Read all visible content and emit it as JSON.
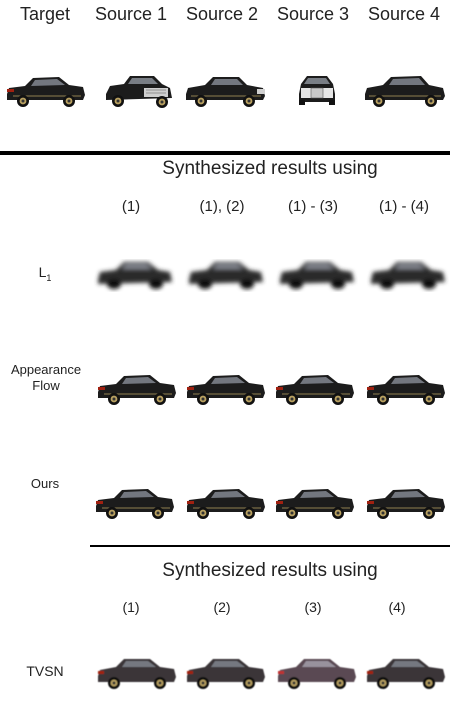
{
  "headers": [
    "Target",
    "Source 1",
    "Source 2",
    "Source 3",
    "Source 4"
  ],
  "section1": {
    "title": "Synthesized results using",
    "columns": [
      "(1)",
      "(1), (2)",
      "(1) - (3)",
      "(1) - (4)"
    ],
    "rows": [
      {
        "label_main": "L",
        "label_sub": "1"
      },
      {
        "label": "Appearance Flow"
      },
      {
        "label": "Ours"
      }
    ]
  },
  "section2": {
    "title": "Synthesized results using",
    "columns": [
      "(1)",
      "(2)",
      "(3)",
      "(4)"
    ],
    "rows": [
      {
        "label": "TVSN"
      }
    ]
  },
  "colors": {
    "car_body": "#1c1c1c",
    "car_body_light": "#3a3a3a",
    "tire": "#111111",
    "rim": "#b8a060",
    "window": "#8a8f98",
    "taillight": "#a02010",
    "tvsn_tint": "#5a4a52"
  }
}
